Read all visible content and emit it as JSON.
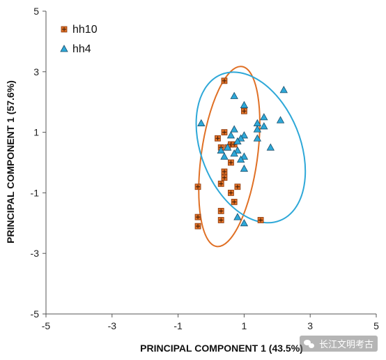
{
  "chart_data": {
    "type": "scatter",
    "title": "",
    "xlabel": "PRINCIPAL COMPONENT 1 (43.5%)",
    "ylabel": "PRINCIPAL COMPONENT 1 (57.6%)",
    "xlim": [
      -5,
      5
    ],
    "ylim": [
      -5,
      5
    ],
    "xticks": [
      -5,
      -3,
      -1,
      1,
      3,
      5
    ],
    "yticks": [
      -5,
      -3,
      -1,
      1,
      3,
      5
    ],
    "xtick_labels": [
      "-5",
      "-3",
      "-1",
      "1",
      "3",
      "5"
    ],
    "ytick_labels": [
      "-5",
      "-3",
      "-1",
      "1",
      "3",
      "5"
    ],
    "grid": false,
    "legend_position": "top-left",
    "series": [
      {
        "name": "hh10",
        "marker": "square-plus",
        "color": "#e07025",
        "edge_color": "#8a3a10",
        "points": [
          [
            0.4,
            2.7
          ],
          [
            1.0,
            1.7
          ],
          [
            0.4,
            1.0
          ],
          [
            0.2,
            0.8
          ],
          [
            0.6,
            0.6
          ],
          [
            0.5,
            0.5
          ],
          [
            0.3,
            0.5
          ],
          [
            0.7,
            0.6
          ],
          [
            0.6,
            0.0
          ],
          [
            0.4,
            -0.3
          ],
          [
            0.4,
            -0.5
          ],
          [
            0.3,
            -0.7
          ],
          [
            -0.4,
            -0.8
          ],
          [
            0.8,
            -0.8
          ],
          [
            0.6,
            -1.0
          ],
          [
            0.7,
            -1.3
          ],
          [
            0.3,
            -1.6
          ],
          [
            -0.4,
            -1.8
          ],
          [
            -0.4,
            -2.1
          ],
          [
            0.3,
            -1.9
          ],
          [
            1.5,
            -1.9
          ]
        ],
        "ellipse": {
          "cx": 0.55,
          "cy": 0.2,
          "rx": 0.85,
          "ry": 3.0,
          "angle_deg": 8
        }
      },
      {
        "name": "hh4",
        "marker": "triangle",
        "color": "#2ea8d8",
        "edge_color": "#1b4f6b",
        "points": [
          [
            2.2,
            2.4
          ],
          [
            0.7,
            2.2
          ],
          [
            1.0,
            1.9
          ],
          [
            1.6,
            1.5
          ],
          [
            2.1,
            1.4
          ],
          [
            1.4,
            1.3
          ],
          [
            -0.3,
            1.3
          ],
          [
            1.6,
            1.2
          ],
          [
            0.7,
            1.1
          ],
          [
            1.4,
            1.1
          ],
          [
            0.6,
            0.9
          ],
          [
            1.0,
            0.9
          ],
          [
            1.4,
            0.8
          ],
          [
            0.9,
            0.8
          ],
          [
            0.8,
            0.7
          ],
          [
            0.5,
            0.5
          ],
          [
            0.3,
            0.4
          ],
          [
            0.8,
            0.4
          ],
          [
            1.8,
            0.5
          ],
          [
            0.7,
            0.3
          ],
          [
            0.4,
            0.2
          ],
          [
            1.0,
            0.2
          ],
          [
            0.9,
            0.1
          ],
          [
            1.0,
            -0.2
          ],
          [
            0.8,
            -1.8
          ],
          [
            1.0,
            -2.0
          ]
        ],
        "ellipse": {
          "cx": 1.2,
          "cy": 0.5,
          "rx": 1.5,
          "ry": 2.6,
          "angle_deg": -22
        }
      }
    ]
  },
  "watermark": {
    "text": "长江文明考古"
  }
}
